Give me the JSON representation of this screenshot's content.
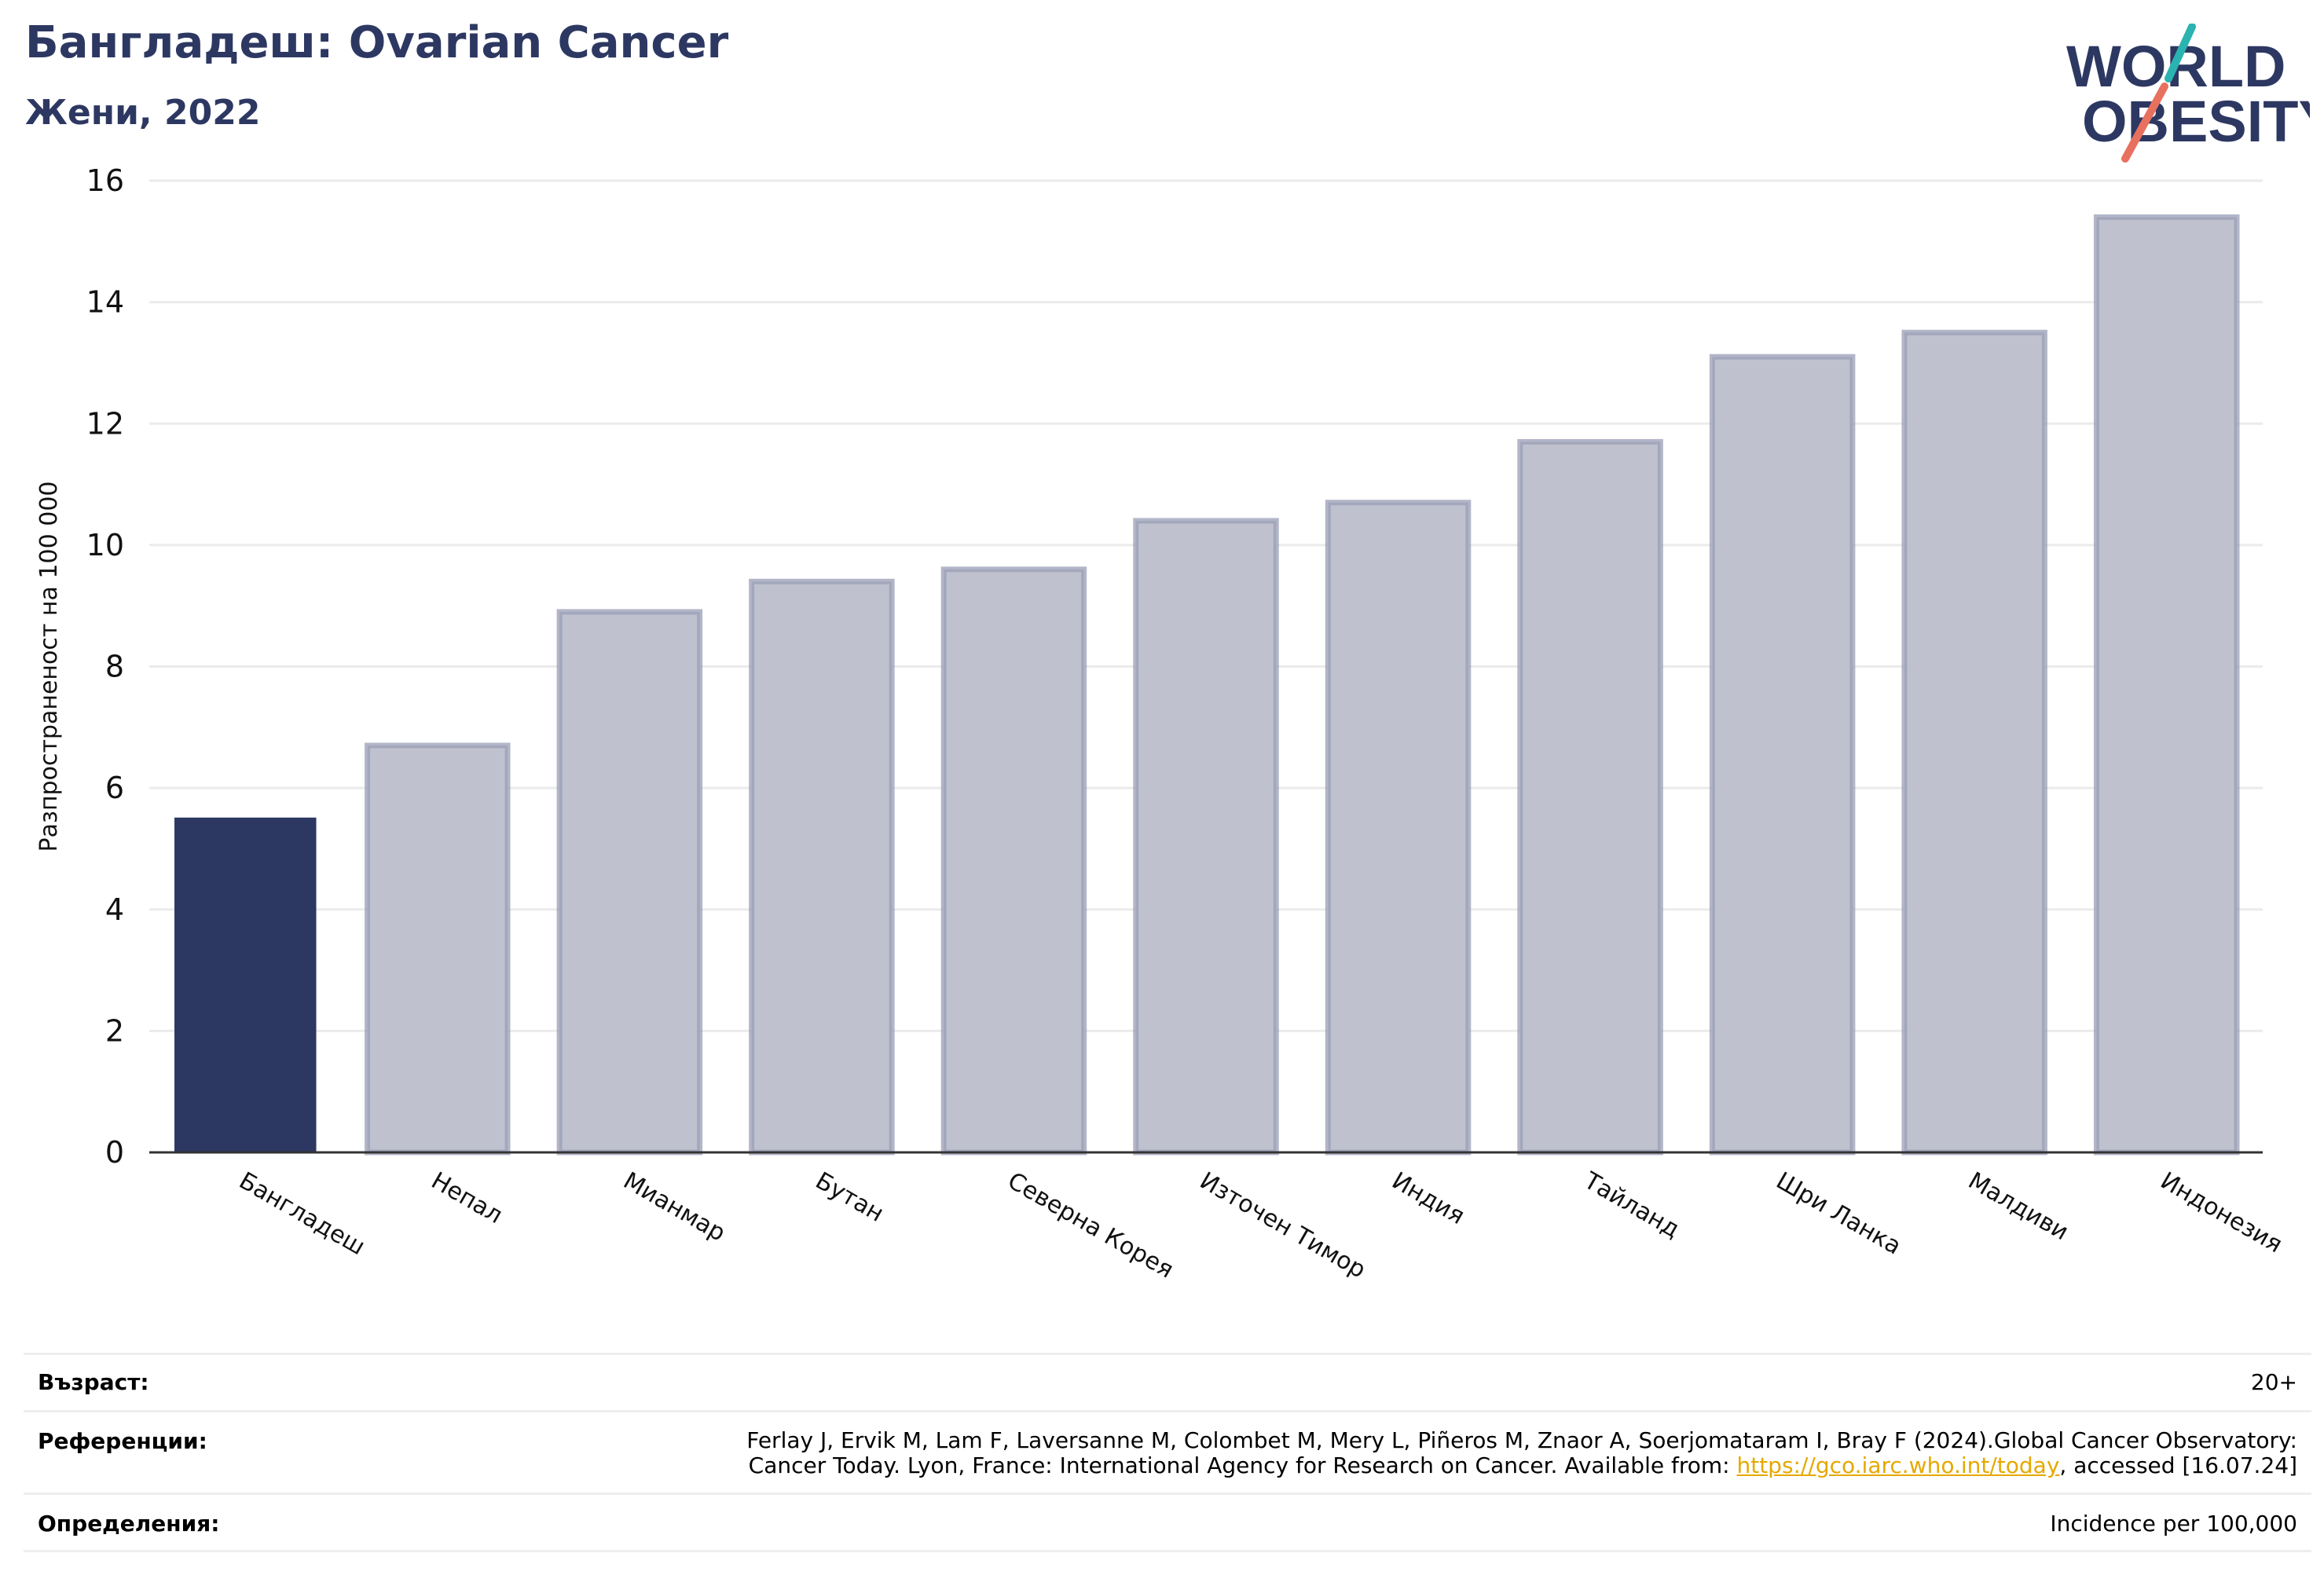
{
  "header": {
    "title": "Бангладеш: Ovarian Cancer",
    "subtitle": "Жени, 2022"
  },
  "logo": {
    "line1": "WORLD",
    "line2": "OBESITY",
    "icon": "world-obesity-logo"
  },
  "chart_data": {
    "type": "bar",
    "ylabel": "Разпространеност  на 100 000",
    "ylim": [
      0,
      16
    ],
    "yticks": [
      0,
      2,
      4,
      6,
      8,
      10,
      12,
      14,
      16
    ],
    "grid": true,
    "categories": [
      "Бангладеш",
      "Непал",
      "Мианмар",
      "Бутан",
      "Северна Корея",
      "Източен Тимор",
      "Индия",
      "Тайланд",
      "Шри Ланка",
      "Малдиви",
      "Индонезия"
    ],
    "values": [
      5.5,
      6.7,
      8.9,
      9.4,
      9.6,
      10.4,
      10.7,
      11.7,
      13.1,
      13.5,
      15.4
    ],
    "highlight_index": 0,
    "colors": {
      "highlight": "#2d3862",
      "other_fill": "#bfc2ce",
      "other_stroke": "#9a9eb6",
      "grid": "#ebebeb",
      "axis": "#333333"
    }
  },
  "footer": {
    "age_label": "Възраст:",
    "age_value": "20+",
    "ref_label": "Референции:",
    "ref_line1": "Ferlay J, Ervik M, Lam F, Laversanne M, Colombet M, Mery L, Piñeros M, Znaor A, Soerjomataram I, Bray F (2024).Global Cancer Observatory:",
    "ref_line2_pre": "Cancer Today. Lyon, France: International Agency for Research on Cancer. Available from: ",
    "ref_link": "https://gco.iarc.who.int/today",
    "ref_line2_post": ", accessed [16.07.24]",
    "def_label": "Определения:",
    "def_value": "Incidence per 100,000"
  }
}
